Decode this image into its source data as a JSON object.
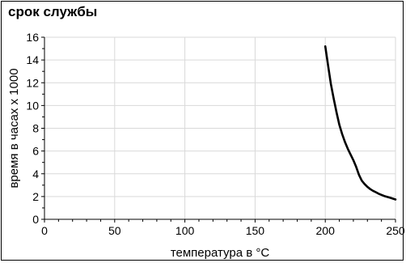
{
  "chart_data": {
    "type": "line",
    "title": "срок службы",
    "xlabel": "температура в °C",
    "ylabel": "время в часах x 1000",
    "xlim": [
      0,
      250
    ],
    "ylim": [
      0,
      16
    ],
    "x_ticks": [
      "0",
      "50",
      "100",
      "150",
      "200",
      "250"
    ],
    "y_ticks": [
      "0",
      "2",
      "4",
      "6",
      "8",
      "10",
      "12",
      "14",
      "16"
    ],
    "grid": true,
    "series": [
      {
        "color": "#000000",
        "x": [
          200,
          202,
          204,
          206,
          208,
          210,
          212,
          214,
          216,
          218,
          220,
          222,
          224,
          226,
          228,
          230,
          232,
          234,
          236,
          238,
          240,
          242,
          244,
          246,
          248,
          250
        ],
        "y": [
          15.2,
          13.5,
          11.9,
          10.6,
          9.4,
          8.3,
          7.5,
          6.8,
          6.2,
          5.7,
          5.2,
          4.6,
          3.9,
          3.4,
          3.1,
          2.85,
          2.65,
          2.5,
          2.38,
          2.25,
          2.15,
          2.05,
          1.98,
          1.9,
          1.82,
          1.74
        ]
      }
    ]
  }
}
